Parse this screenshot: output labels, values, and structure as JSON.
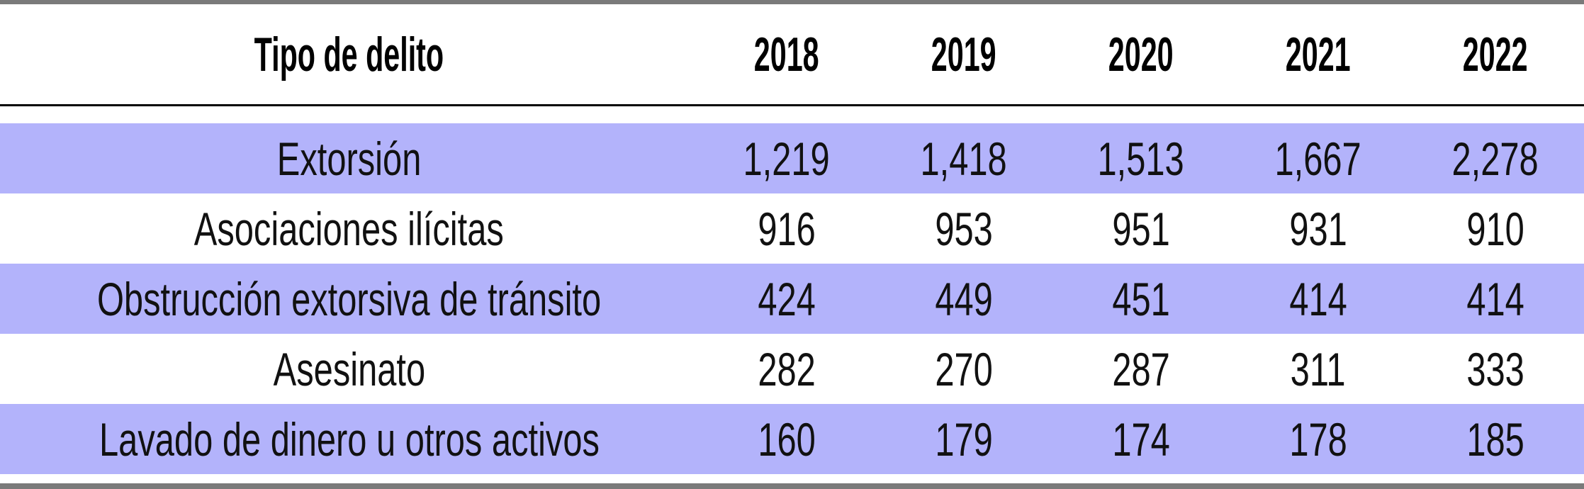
{
  "table": {
    "headers": [
      "Tipo de delito",
      "2018",
      "2019",
      "2020",
      "2021",
      "2022"
    ],
    "rows": [
      {
        "label": "Extorsión",
        "values": [
          "1,219",
          "1,418",
          "1,513",
          "1,667",
          "2,278"
        ]
      },
      {
        "label": "Asociaciones ilícitas",
        "values": [
          "916",
          "953",
          "951",
          "931",
          "910"
        ]
      },
      {
        "label": "Obstrucción extorsiva de tránsito",
        "values": [
          "424",
          "449",
          "451",
          "414",
          "414"
        ]
      },
      {
        "label": "Asesinato",
        "values": [
          "282",
          "270",
          "287",
          "311",
          "333"
        ]
      },
      {
        "label": "Lavado de dinero u otros activos",
        "values": [
          "160",
          "179",
          "174",
          "178",
          "185"
        ]
      }
    ]
  },
  "colors": {
    "row_shade": "#b3b3fb",
    "border": "#7a7a7a"
  }
}
